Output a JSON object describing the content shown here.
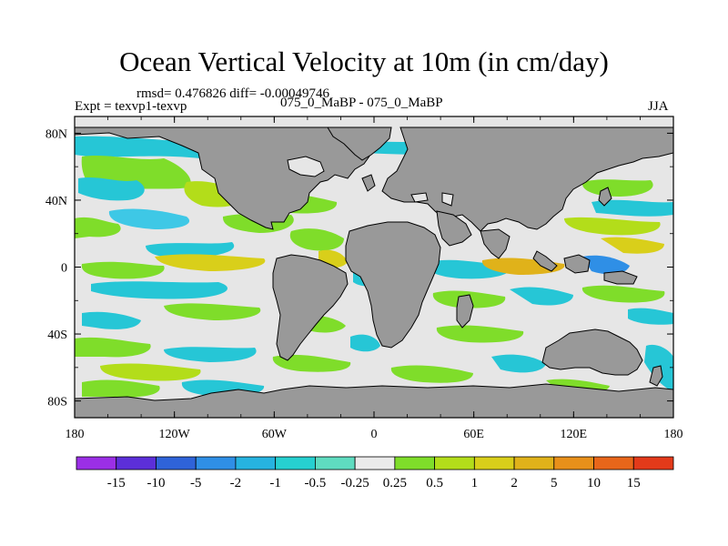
{
  "title": "Ocean Vertical Velocity at 10m (in cm/day)",
  "stats_line": "rmsd= 0.476826 diff= -0.00049746",
  "experiment_label": "Expt = texvp1-texvp",
  "case_label": "075_0_MaBP - 075_0_MaBP",
  "season_label": "JJA",
  "map": {
    "lon_range": [
      -180,
      180
    ],
    "lat_range": [
      -90,
      90
    ],
    "lat_ticks": [
      {
        "value": 80,
        "label": "80N"
      },
      {
        "value": 40,
        "label": "40N"
      },
      {
        "value": 0,
        "label": "0"
      },
      {
        "value": -40,
        "label": "40S"
      },
      {
        "value": -80,
        "label": "80S"
      }
    ],
    "lon_ticks": [
      {
        "value": -180,
        "label": "180"
      },
      {
        "value": -120,
        "label": "120W"
      },
      {
        "value": -60,
        "label": "60W"
      },
      {
        "value": 0,
        "label": "0"
      },
      {
        "value": 60,
        "label": "60E"
      },
      {
        "value": 120,
        "label": "120E"
      },
      {
        "value": 180,
        "label": "180"
      }
    ],
    "ocean_color": "#e6e6e6",
    "land_color": "#999999"
  },
  "colorbar": {
    "colors": [
      "#9b2fe6",
      "#5c2fd9",
      "#2f63d9",
      "#2f8fe6",
      "#26b3e0",
      "#26d0d0",
      "#5fdcc0",
      "#ebebeb",
      "#7fdd2a",
      "#b3dd1a",
      "#d9cf1a",
      "#e0b21a",
      "#e8901a",
      "#e8661a",
      "#e33a1a"
    ],
    "labels": [
      "-15",
      "-10",
      "-5",
      "-2",
      "-1",
      "-0.5",
      "-0.25",
      "0.25",
      "0.5",
      "1",
      "2",
      "5",
      "10",
      "15"
    ]
  }
}
